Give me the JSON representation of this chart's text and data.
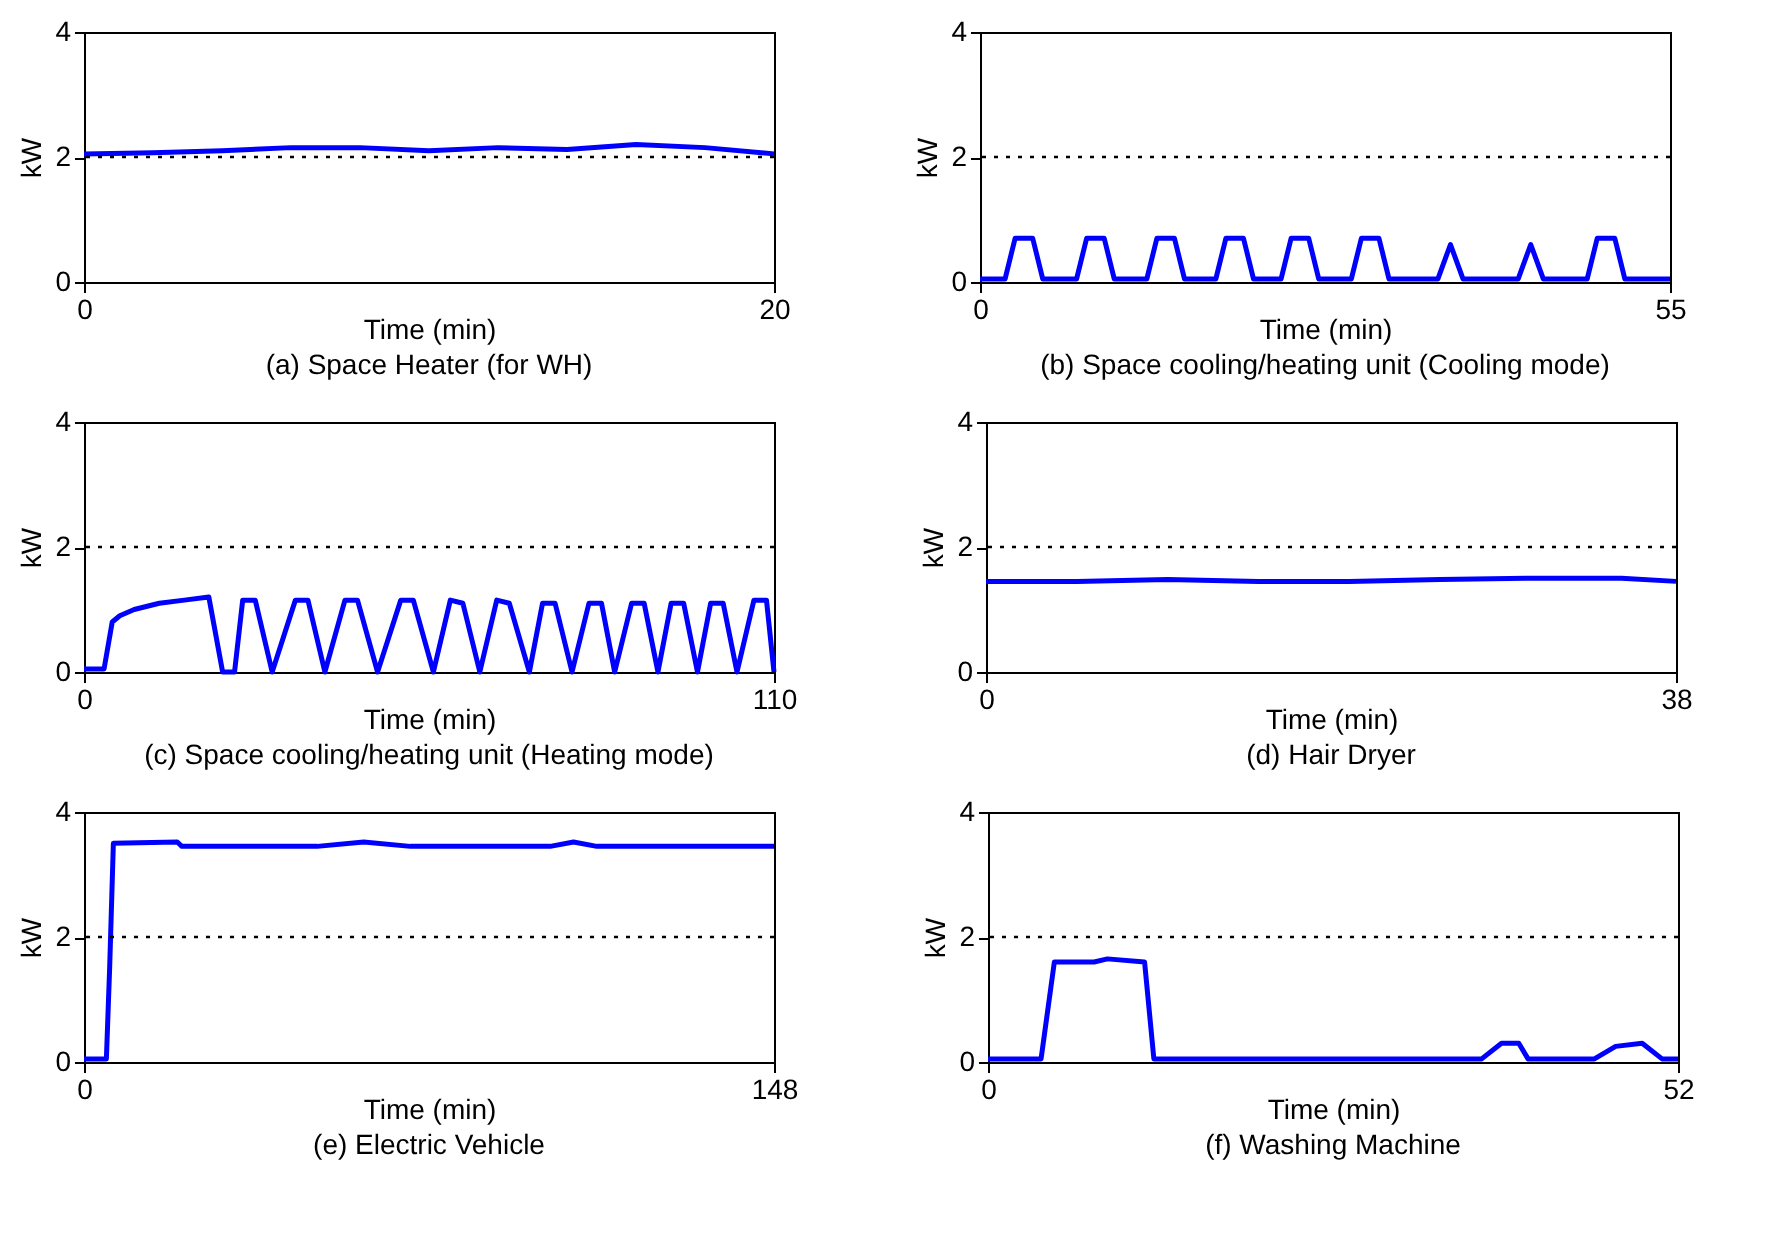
{
  "chart_data": [
    {
      "type": "line",
      "title": "(a) Space Heater (for WH)",
      "xlabel": "Time (min)",
      "ylabel": "kW",
      "xlim": [
        0,
        20
      ],
      "xticks": [
        0,
        20
      ],
      "ylim": [
        0,
        4
      ],
      "yticks": [
        0,
        2,
        4
      ],
      "grid": false,
      "ref_lines": [
        {
          "axis": "y",
          "value": 2,
          "color": "#000000",
          "line_style": "dotted"
        }
      ],
      "x": [
        0,
        2,
        4,
        6,
        8,
        10,
        12,
        14,
        16,
        18,
        20
      ],
      "series": [
        {
          "color": "#0000ff",
          "values": [
            2.05,
            2.07,
            2.1,
            2.15,
            2.15,
            2.1,
            2.15,
            2.12,
            2.2,
            2.15,
            2.05
          ]
        }
      ]
    },
    {
      "type": "line",
      "title": "(b) Space cooling/heating unit (Cooling mode)",
      "xlabel": "Time (min)",
      "ylabel": "kW",
      "xlim": [
        0,
        55
      ],
      "xticks": [
        0,
        55
      ],
      "ylim": [
        0,
        4
      ],
      "yticks": [
        0,
        2,
        4
      ],
      "grid": false,
      "ref_lines": [
        {
          "axis": "y",
          "value": 2,
          "color": "#000000",
          "line_style": "dotted"
        }
      ],
      "x": [
        0,
        2.0,
        2.8,
        4.2,
        5.0,
        7.7,
        8.5,
        9.9,
        10.7,
        13.3,
        14.1,
        15.5,
        16.3,
        18.8,
        19.6,
        21.0,
        21.8,
        24.0,
        24.8,
        26.2,
        27.0,
        29.6,
        30.4,
        31.8,
        32.6,
        36.5,
        37.5,
        38.5,
        42.9,
        43.9,
        44.9,
        48.4,
        49.2,
        50.6,
        51.4,
        55
      ],
      "series": [
        {
          "color": "#0000ff",
          "values": [
            0.05,
            0.05,
            0.7,
            0.7,
            0.05,
            0.05,
            0.7,
            0.7,
            0.05,
            0.05,
            0.7,
            0.7,
            0.05,
            0.05,
            0.7,
            0.7,
            0.05,
            0.05,
            0.7,
            0.7,
            0.05,
            0.05,
            0.7,
            0.7,
            0.05,
            0.05,
            0.6,
            0.05,
            0.05,
            0.6,
            0.05,
            0.05,
            0.7,
            0.7,
            0.05,
            0.05
          ]
        }
      ]
    },
    {
      "type": "line",
      "title": "(c) Space cooling/heating unit (Heating mode)",
      "xlabel": "Time (min)",
      "ylabel": "kW",
      "xlim": [
        0,
        110
      ],
      "xticks": [
        0,
        110
      ],
      "ylim": [
        0,
        4
      ],
      "yticks": [
        0,
        2,
        4
      ],
      "grid": false,
      "ref_lines": [
        {
          "axis": "y",
          "value": 2,
          "color": "#000000",
          "line_style": "dotted"
        }
      ],
      "x": [
        0,
        3.2,
        4.5,
        5.7,
        8,
        12,
        16,
        19.9,
        22.1,
        24,
        25.3,
        27.3,
        30,
        33.7,
        35.7,
        38.4,
        41.6,
        43.6,
        46.8,
        50.5,
        52.5,
        55.7,
        58.4,
        60.4,
        63.1,
        65.8,
        67.8,
        71,
        73.1,
        75.1,
        77.8,
        80.5,
        82.5,
        84.6,
        87.3,
        89.3,
        91.5,
        93.6,
        95.6,
        97.8,
        99.9,
        101.9,
        104.1,
        106.8,
        108.8,
        110
      ],
      "series": [
        {
          "color": "#0000ff",
          "values": [
            0.05,
            0.05,
            0.8,
            0.9,
            1.0,
            1.1,
            1.15,
            1.2,
            0,
            0,
            1.15,
            1.15,
            0,
            1.15,
            1.15,
            0,
            1.15,
            1.15,
            0,
            1.15,
            1.15,
            0,
            1.15,
            1.1,
            0,
            1.15,
            1.1,
            0,
            1.1,
            1.1,
            0,
            1.1,
            1.1,
            0,
            1.1,
            1.1,
            0,
            1.1,
            1.1,
            0,
            1.1,
            1.1,
            0,
            1.15,
            1.15,
            0
          ]
        }
      ]
    },
    {
      "type": "line",
      "title": "(d) Hair Dryer",
      "xlabel": "Time (min)",
      "ylabel": "kW",
      "xlim": [
        0,
        38
      ],
      "xticks": [
        0,
        38
      ],
      "ylim": [
        0,
        4
      ],
      "yticks": [
        0,
        2,
        4
      ],
      "grid": false,
      "ref_lines": [
        {
          "axis": "y",
          "value": 2,
          "color": "#000000",
          "line_style": "dotted"
        }
      ],
      "x": [
        0,
        5,
        10,
        15,
        20,
        25,
        30,
        35,
        38
      ],
      "series": [
        {
          "color": "#0000ff",
          "values": [
            1.45,
            1.45,
            1.48,
            1.45,
            1.45,
            1.48,
            1.5,
            1.5,
            1.45
          ]
        }
      ]
    },
    {
      "type": "line",
      "title": "(e) Electric Vehicle",
      "xlabel": "Time (min)",
      "ylabel": "kW",
      "xlim": [
        0,
        148
      ],
      "xticks": [
        0,
        148
      ],
      "ylim": [
        0,
        4
      ],
      "yticks": [
        0,
        2,
        4
      ],
      "grid": false,
      "ref_lines": [
        {
          "axis": "y",
          "value": 2,
          "color": "#000000",
          "line_style": "dotted"
        }
      ],
      "x": [
        0,
        4.8,
        5.5,
        6.3,
        20,
        21,
        40,
        50,
        60,
        70,
        80,
        100,
        105,
        110,
        140,
        148
      ],
      "series": [
        {
          "color": "#0000ff",
          "values": [
            0.05,
            0.05,
            1.5,
            3.5,
            3.52,
            3.45,
            3.45,
            3.45,
            3.52,
            3.45,
            3.45,
            3.45,
            3.52,
            3.45,
            3.45,
            3.45
          ]
        }
      ]
    },
    {
      "type": "line",
      "title": "(f) Washing Machine",
      "xlabel": "Time (min)",
      "ylabel": "kW",
      "xlim": [
        0,
        52
      ],
      "xticks": [
        0,
        52
      ],
      "ylim": [
        0,
        4
      ],
      "yticks": [
        0,
        2,
        4
      ],
      "grid": false,
      "ref_lines": [
        {
          "axis": "y",
          "value": 2,
          "color": "#000000",
          "line_style": "dotted"
        }
      ],
      "x": [
        0,
        4.0,
        5.0,
        8,
        9,
        11.8,
        12.5,
        37.2,
        38.7,
        40.0,
        40.7,
        45.7,
        47.3,
        49.3,
        50.8,
        52
      ],
      "series": [
        {
          "color": "#0000ff",
          "values": [
            0.05,
            0.05,
            1.6,
            1.6,
            1.65,
            1.6,
            0.05,
            0.05,
            0.3,
            0.3,
            0.05,
            0.05,
            0.25,
            0.3,
            0.05,
            0.05
          ]
        }
      ]
    }
  ]
}
